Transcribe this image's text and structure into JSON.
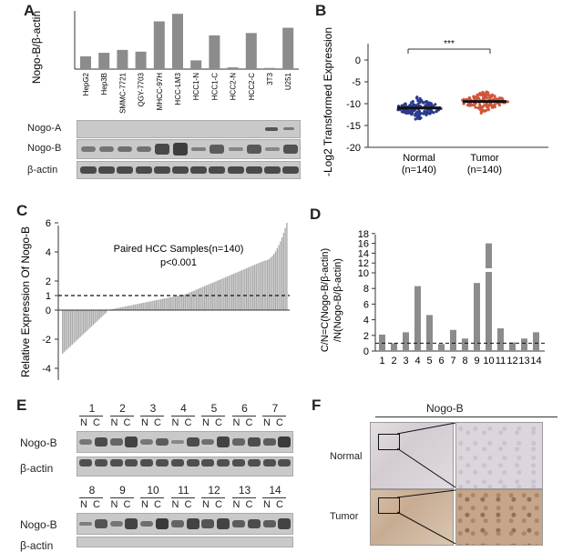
{
  "panels": {
    "A": "A",
    "B": "B",
    "C": "C",
    "D": "D",
    "E": "E",
    "F": "F"
  },
  "colors": {
    "bar": "#8c8c8c",
    "normal": "#2b3a8f",
    "tumor": "#d2553a",
    "blot_bg": "#c9c9c9",
    "band": "#3a3a3a",
    "tissue_normal": "#d8d2d6",
    "tissue_tumor": "#c9a78c"
  },
  "panelA": {
    "chart_data": {
      "type": "bar",
      "ylabel": "Nogo-B/β-actin",
      "ylim": [
        0,
        1
      ],
      "categories": [
        "HepG2",
        "Hep3B",
        "SMMC-7721",
        "QGY-7703",
        "MHCC-97H",
        "HCC-LM3",
        "HCC1-N",
        "HCC1-C",
        "HCC2-N",
        "HCC2-C",
        "3T3",
        "U251"
      ],
      "values": [
        0.22,
        0.28,
        0.33,
        0.3,
        0.82,
        0.95,
        0.15,
        0.58,
        0.03,
        0.62,
        0.02,
        0.71
      ]
    },
    "blots": [
      "Nogo-A",
      "Nogo-B",
      "β-actin"
    ]
  },
  "panelB": {
    "chart_data": {
      "type": "scatter",
      "ylabel": "-Log2 Transformed Expression",
      "ylim": [
        -20,
        0
      ],
      "yticks": [
        "0",
        "-5",
        "-10",
        "-15",
        "-20"
      ],
      "groups": [
        {
          "name": "Normal",
          "n": "(n=140)",
          "mean": -11.0
        },
        {
          "name": "Tumor",
          "n": "(n=140)",
          "mean": -9.5
        }
      ],
      "significance": "***"
    }
  },
  "panelC": {
    "chart_data": {
      "type": "bar",
      "ylabel": "Relative Expression Of Nogo-B",
      "yticks": [
        "6",
        "4",
        "2",
        "1",
        "0",
        "-2",
        "-4"
      ],
      "ylim": [
        -4,
        6.5
      ],
      "threshold": 1,
      "annotation": "Paired HCC Samples(n=140)",
      "pvalue": "p<0.001"
    }
  },
  "panelD": {
    "chart_data": {
      "type": "bar",
      "ylabel_line1": "C/N=C(Nogo-B/β-actin)",
      "ylabel_line2": "/N(Nogo-B/β-actin)",
      "categories": [
        "1",
        "2",
        "3",
        "4",
        "5",
        "6",
        "7",
        "8",
        "9",
        "10",
        "11",
        "12",
        "13",
        "14"
      ],
      "values": [
        2.1,
        1.0,
        2.4,
        8.3,
        4.6,
        0.9,
        2.7,
        1.6,
        8.7,
        16.0,
        2.9,
        1.1,
        1.6,
        2.4
      ],
      "yticks": [
        "0",
        "2",
        "4",
        "6",
        "8",
        "10",
        "12",
        "14",
        "16",
        "18"
      ],
      "threshold": 1
    }
  },
  "panelE": {
    "row1_samples": [
      "1",
      "2",
      "3",
      "4",
      "5",
      "6",
      "7"
    ],
    "row2_samples": [
      "8",
      "9",
      "10",
      "11",
      "12",
      "13",
      "14"
    ],
    "nc": [
      "N",
      "C"
    ],
    "blots_row1": [
      "Nogo-B",
      "β-actin"
    ],
    "blots_row2": [
      "Nogo-B",
      "β-actin"
    ]
  },
  "panelF": {
    "title": "Nogo-B",
    "rows": [
      "Normal",
      "Tumor"
    ]
  }
}
